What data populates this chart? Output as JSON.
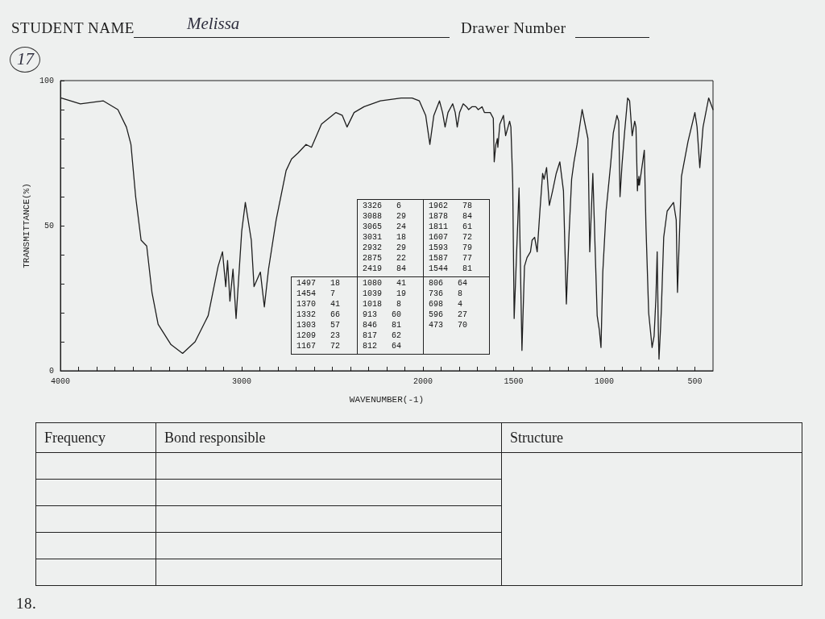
{
  "chart_data": {
    "type": "line",
    "xlabel": "WAVENUMBER(-1)",
    "ylabel": "TRANSMITTANCE(%)",
    "color": "#1e1e1e",
    "x": [
      3995,
      3890,
      3763,
      3683,
      3636,
      3611,
      3585,
      3555,
      3524,
      3495,
      3461,
      3390,
      3326,
      3257,
      3185,
      3130,
      3106,
      3088,
      3078,
      3065,
      3048,
      3031,
      3000,
      2980,
      2947,
      2932,
      2897,
      2875,
      2852,
      2810,
      2755,
      2725,
      2690,
      2645,
      2615,
      2560,
      2480,
      2445,
      2419,
      2380,
      2325,
      2235,
      2120,
      2060,
      2020,
      1985,
      1962,
      1940,
      1909,
      1892,
      1878,
      1862,
      1836,
      1822,
      1811,
      1798,
      1778,
      1760,
      1748,
      1730,
      1709,
      1695,
      1674,
      1661,
      1629,
      1612,
      1607,
      1598,
      1593,
      1590,
      1587,
      1576,
      1556,
      1544,
      1522,
      1515,
      1505,
      1497,
      1470,
      1454,
      1440,
      1426,
      1407,
      1398,
      1384,
      1370,
      1355,
      1340,
      1332,
      1318,
      1303,
      1285,
      1265,
      1245,
      1225,
      1209,
      1195,
      1180,
      1167,
      1150,
      1122,
      1090,
      1080,
      1063,
      1039,
      1027,
      1018,
      1008,
      990,
      965,
      950,
      930,
      920,
      913,
      902,
      888,
      871,
      860,
      846,
      832,
      825,
      817,
      814,
      812,
      809,
      806,
      779,
      770,
      755,
      736,
      725,
      715,
      708,
      702,
      698,
      690,
      685,
      672,
      653,
      618,
      603,
      596,
      583,
      574,
      538,
      500,
      488,
      473,
      455,
      424,
      400
    ],
    "values": [
      94,
      92,
      93,
      90,
      84,
      78,
      60,
      45,
      43,
      27,
      16,
      9,
      6,
      10,
      19,
      36,
      41,
      29,
      38,
      24,
      35,
      18,
      48,
      58,
      45,
      29,
      34,
      22,
      35,
      52,
      69,
      73,
      75,
      78,
      77,
      85,
      89,
      88,
      84,
      89,
      91,
      93,
      94,
      94,
      93,
      88,
      78,
      88,
      93,
      89,
      84,
      89,
      92,
      89,
      84,
      89,
      92,
      91,
      90,
      91,
      91,
      90,
      91,
      89,
      89,
      87,
      72,
      78,
      79,
      80,
      77,
      85,
      88,
      81,
      86,
      84,
      65,
      18,
      63,
      7,
      36,
      39,
      41,
      45,
      46,
      41,
      55,
      68,
      66,
      70,
      57,
      62,
      68,
      72,
      62,
      23,
      46,
      66,
      72,
      78,
      90,
      80,
      41,
      68,
      19,
      14,
      8,
      34,
      55,
      71,
      82,
      88,
      86,
      60,
      71,
      82,
      94,
      93,
      81,
      86,
      84,
      62,
      66,
      64,
      67,
      64,
      76,
      50,
      20,
      8,
      12,
      25,
      41,
      15,
      4,
      14,
      21,
      46,
      55,
      58,
      52,
      27,
      51,
      67,
      79,
      89,
      84,
      70,
      84,
      94,
      90
    ],
    "xlim": [
      4000,
      400
    ],
    "xticks": [
      {
        "value": 3900,
        "label": null
      },
      {
        "value": 3800,
        "label": null
      },
      {
        "value": 3700,
        "label": null
      },
      {
        "value": 3600,
        "label": null
      },
      {
        "value": 3500,
        "label": null
      },
      {
        "value": 3400,
        "label": null
      },
      {
        "value": 3300,
        "label": null
      },
      {
        "value": 3200,
        "label": null
      },
      {
        "value": 3100,
        "label": null
      },
      3000,
      {
        "value": 2900,
        "label": null
      },
      {
        "value": 2800,
        "label": null
      },
      {
        "value": 2700,
        "label": null
      },
      {
        "value": 2600,
        "label": null
      },
      {
        "value": 2500,
        "label": null
      },
      {
        "value": 2400,
        "label": null
      },
      {
        "value": 2300,
        "label": null
      },
      {
        "value": 2200,
        "label": null
      },
      {
        "value": 2100,
        "label": null
      },
      2000,
      {
        "value": 1900,
        "label": null
      },
      {
        "value": 1800,
        "label": null
      },
      {
        "value": 1700,
        "label": null
      },
      {
        "value": 1600,
        "label": null
      },
      1500,
      {
        "value": 1400,
        "label": null
      },
      {
        "value": 1300,
        "label": null
      },
      {
        "value": 1200,
        "label": null
      },
      {
        "value": 1100,
        "label": null
      },
      1000,
      {
        "value": 900,
        "label": null
      },
      {
        "value": 800,
        "label": null
      },
      {
        "value": 700,
        "label": null
      },
      {
        "value": 600,
        "label": null
      },
      500,
      4000
    ],
    "ylim": [
      0,
      100
    ],
    "yticks": [
      0,
      {
        "value": 10,
        "label": null
      },
      {
        "value": 20,
        "label": null
      },
      {
        "value": 30,
        "label": null
      },
      {
        "value": 40,
        "label": null
      },
      50,
      {
        "value": 60,
        "label": null
      },
      {
        "value": 70,
        "label": null
      },
      {
        "value": 80,
        "label": null
      },
      {
        "value": 90,
        "label": null
      },
      100
    ],
    "annotations": [
      "STUDENT NAME",
      "Melissa",
      "Drawer Number",
      "17",
      "3326 6",
      "3088 29",
      "3065 24",
      "3031 18",
      "2932 29",
      "2875 22",
      "2419 84",
      "1962 78",
      "1878 84",
      "1811 61",
      "1607 72",
      "1593 79",
      "1587 77",
      "1544 81",
      "1497 18",
      "1454 7",
      "1370 41",
      "1332 66",
      "1303 57",
      "1209 23",
      "1167 72",
      "1080 41",
      "1039 19",
      "1018 8",
      "913 60",
      "846 81",
      "817 62",
      "812 64",
      "806 64",
      "736 8",
      "698 4",
      "596 27",
      "473 70",
      "Frequency",
      "Bond responsible",
      "Structure",
      "18."
    ]
  }
}
